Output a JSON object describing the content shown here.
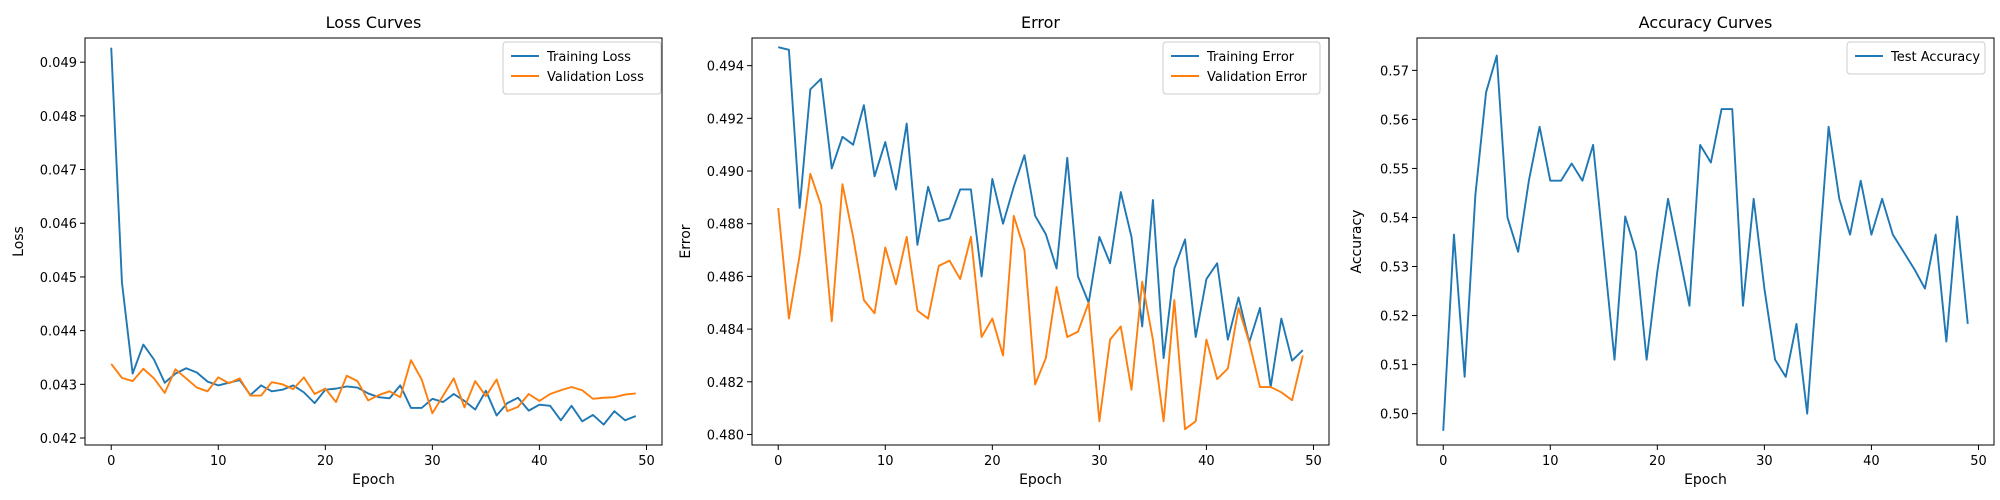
{
  "chart_data": [
    {
      "type": "line",
      "title": "Loss Curves",
      "xlabel": "Epoch",
      "ylabel": "Loss",
      "xlim": [
        -2.45,
        51.45
      ],
      "ylim": [
        0.04187,
        0.04945
      ],
      "xticks": [
        0,
        10,
        20,
        30,
        40,
        50
      ],
      "yticks": [
        0.042,
        0.043,
        0.044,
        0.045,
        0.046,
        0.047,
        0.048,
        0.049
      ],
      "ytick_labels": [
        "0.042",
        "0.043",
        "0.044",
        "0.045",
        "0.046",
        "0.047",
        "0.048",
        "0.049"
      ],
      "grid": false,
      "legend_position": "top-right",
      "x": [
        0,
        1,
        2,
        3,
        4,
        5,
        6,
        7,
        8,
        9,
        10,
        11,
        12,
        13,
        14,
        15,
        16,
        17,
        18,
        19,
        20,
        21,
        22,
        23,
        24,
        25,
        26,
        27,
        28,
        29,
        30,
        31,
        32,
        33,
        34,
        35,
        36,
        37,
        38,
        39,
        40,
        41,
        42,
        43,
        44,
        45,
        46,
        47,
        48,
        49
      ],
      "series": [
        {
          "name": "Training Loss",
          "color": "#1f77b4",
          "values": [
            0.04927,
            0.0449,
            0.0432,
            0.04374,
            0.04346,
            0.04303,
            0.0432,
            0.0433,
            0.04322,
            0.04305,
            0.04298,
            0.04303,
            0.04308,
            0.0428,
            0.04298,
            0.04287,
            0.0429,
            0.04298,
            0.04285,
            0.04265,
            0.0429,
            0.04292,
            0.04296,
            0.04294,
            0.04283,
            0.04276,
            0.04274,
            0.04298,
            0.04256,
            0.04256,
            0.04273,
            0.04267,
            0.04282,
            0.04269,
            0.04253,
            0.04288,
            0.04242,
            0.04265,
            0.04275,
            0.04251,
            0.04262,
            0.0426,
            0.04233,
            0.0426,
            0.04231,
            0.04243,
            0.04225,
            0.0425,
            0.04233,
            0.04241
          ]
        },
        {
          "name": "Validation Loss",
          "color": "#ff7f0e",
          "values": [
            0.04338,
            0.04312,
            0.04306,
            0.04329,
            0.04311,
            0.04284,
            0.04328,
            0.04311,
            0.04294,
            0.04287,
            0.04313,
            0.04302,
            0.04311,
            0.04279,
            0.04279,
            0.04304,
            0.043,
            0.04291,
            0.04313,
            0.04282,
            0.04292,
            0.04267,
            0.04316,
            0.04306,
            0.0427,
            0.0428,
            0.04287,
            0.04276,
            0.04345,
            0.04309,
            0.04246,
            0.04279,
            0.04311,
            0.04257,
            0.04306,
            0.04278,
            0.04309,
            0.0425,
            0.04258,
            0.04282,
            0.04269,
            0.04282,
            0.04289,
            0.04295,
            0.04289,
            0.04273,
            0.04275,
            0.04276,
            0.04281,
            0.04283
          ]
        }
      ]
    },
    {
      "type": "line",
      "title": "Error",
      "xlabel": "Epoch",
      "ylabel": "Error",
      "xlim": [
        -2.45,
        51.45
      ],
      "ylim": [
        0.4796,
        0.49505
      ],
      "xticks": [
        0,
        10,
        20,
        30,
        40,
        50
      ],
      "yticks": [
        0.48,
        0.482,
        0.484,
        0.486,
        0.488,
        0.49,
        0.492,
        0.494
      ],
      "ytick_labels": [
        "0.480",
        "0.482",
        "0.484",
        "0.486",
        "0.488",
        "0.490",
        "0.492",
        "0.494"
      ],
      "grid": false,
      "legend_position": "top-right",
      "x": [
        0,
        1,
        2,
        3,
        4,
        5,
        6,
        7,
        8,
        9,
        10,
        11,
        12,
        13,
        14,
        15,
        16,
        17,
        18,
        19,
        20,
        21,
        22,
        23,
        24,
        25,
        26,
        27,
        28,
        29,
        30,
        31,
        32,
        33,
        34,
        35,
        36,
        37,
        38,
        39,
        40,
        41,
        42,
        43,
        44,
        45,
        46,
        47,
        48,
        49
      ],
      "series": [
        {
          "name": "Training Error",
          "color": "#1f77b4",
          "values": [
            0.4947,
            0.4946,
            0.4886,
            0.4931,
            0.4935,
            0.4901,
            0.4913,
            0.491,
            0.4925,
            0.4898,
            0.4911,
            0.4893,
            0.4918,
            0.4872,
            0.4894,
            0.4881,
            0.4882,
            0.4893,
            0.4893,
            0.486,
            0.4897,
            0.488,
            0.4894,
            0.4906,
            0.4883,
            0.4876,
            0.4863,
            0.4905,
            0.486,
            0.485,
            0.4875,
            0.4865,
            0.4892,
            0.4875,
            0.4841,
            0.4889,
            0.4829,
            0.4863,
            0.4874,
            0.4837,
            0.4859,
            0.4865,
            0.4836,
            0.4852,
            0.4835,
            0.4848,
            0.4818,
            0.4844,
            0.4828,
            0.4832
          ]
        },
        {
          "name": "Validation Error",
          "color": "#ff7f0e",
          "values": [
            0.4886,
            0.4844,
            0.4868,
            0.4899,
            0.4887,
            0.4843,
            0.4895,
            0.4875,
            0.4851,
            0.4846,
            0.4871,
            0.4857,
            0.4875,
            0.4847,
            0.4844,
            0.4864,
            0.4866,
            0.4859,
            0.4875,
            0.4837,
            0.4844,
            0.483,
            0.4883,
            0.487,
            0.4819,
            0.4829,
            0.4856,
            0.4837,
            0.4839,
            0.485,
            0.4805,
            0.4836,
            0.4841,
            0.4817,
            0.4858,
            0.4836,
            0.4805,
            0.4851,
            0.4802,
            0.4805,
            0.4836,
            0.4821,
            0.4825,
            0.4848,
            0.4835,
            0.4818,
            0.4818,
            0.4816,
            0.4813,
            0.483
          ]
        }
      ]
    },
    {
      "type": "line",
      "title": "Accuracy Curves",
      "xlabel": "Epoch",
      "ylabel": "Accuracy",
      "xlim": [
        -2.45,
        51.45
      ],
      "ylim": [
        0.4936,
        0.5766
      ],
      "xticks": [
        0,
        10,
        20,
        30,
        40,
        50
      ],
      "yticks": [
        0.5,
        0.51,
        0.52,
        0.53,
        0.54,
        0.55,
        0.56,
        0.57
      ],
      "ytick_labels": [
        "0.50",
        "0.51",
        "0.52",
        "0.53",
        "0.54",
        "0.55",
        "0.56",
        "0.57"
      ],
      "grid": false,
      "legend_position": "top-right",
      "x": [
        0,
        1,
        2,
        3,
        4,
        5,
        6,
        7,
        8,
        9,
        10,
        11,
        12,
        13,
        14,
        15,
        16,
        17,
        18,
        19,
        20,
        21,
        22,
        23,
        24,
        25,
        26,
        27,
        28,
        29,
        30,
        31,
        32,
        33,
        34,
        35,
        36,
        37,
        38,
        39,
        40,
        41,
        42,
        43,
        44,
        45,
        46,
        47,
        48,
        49
      ],
      "series": [
        {
          "name": "Test Accuracy",
          "color": "#1f77b4",
          "values": [
            0.4965,
            0.5365,
            0.5075,
            0.5445,
            0.5655,
            0.573,
            0.54,
            0.533,
            0.5475,
            0.5585,
            0.5475,
            0.5475,
            0.551,
            0.5475,
            0.5548,
            0.533,
            0.511,
            0.5402,
            0.533,
            0.511,
            0.529,
            0.5438,
            0.533,
            0.522,
            0.5548,
            0.5512,
            0.5621,
            0.5621,
            0.522,
            0.5438,
            0.5255,
            0.511,
            0.5075,
            0.5183,
            0.5,
            0.5295,
            0.5585,
            0.5438,
            0.5365,
            0.5475,
            0.5365,
            0.5438,
            0.5365,
            0.533,
            0.5295,
            0.5255,
            0.5365,
            0.5147,
            0.5402,
            0.5183
          ]
        }
      ]
    }
  ]
}
